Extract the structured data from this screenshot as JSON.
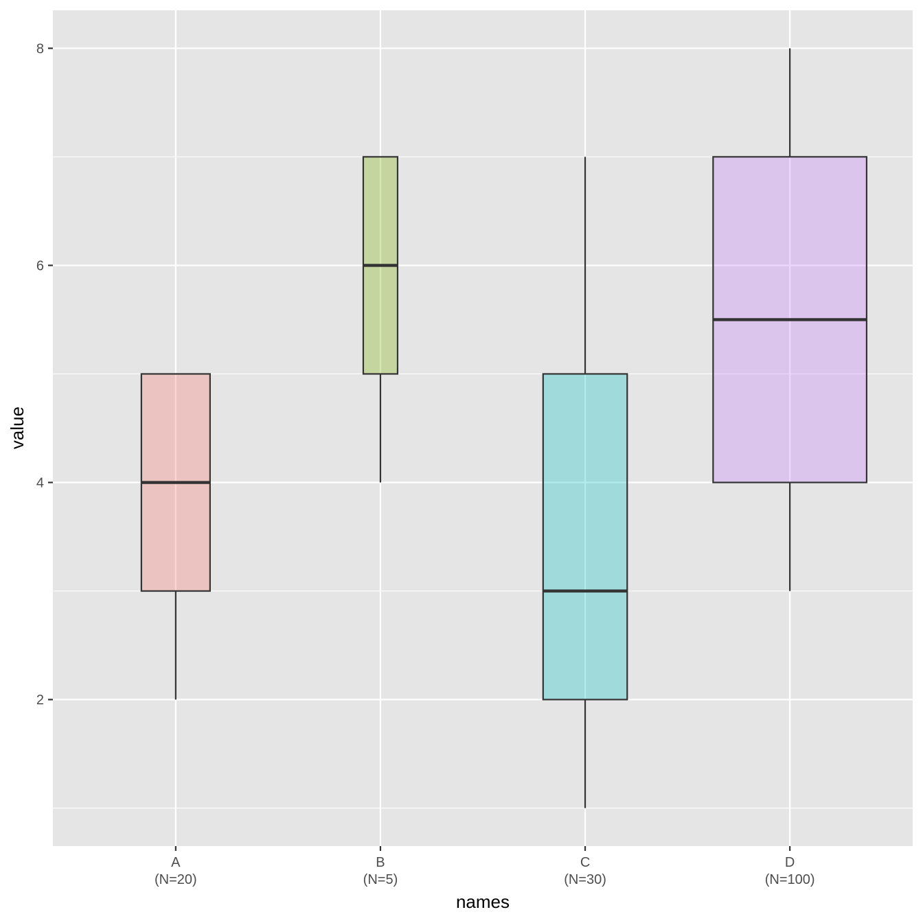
{
  "chart_data": {
    "type": "boxplot",
    "title": "",
    "xlabel": "names",
    "ylabel": "value",
    "ylim": [
      0.65,
      8.35
    ],
    "yticks": [
      2,
      4,
      6,
      8
    ],
    "y_minor_gridlines": [
      1,
      3,
      5,
      7
    ],
    "grid": true,
    "legend": "none",
    "background_color": "#e5e5e5",
    "categories": [
      "A",
      "B",
      "C",
      "D"
    ],
    "category_labels": [
      [
        "A",
        "(N=20)"
      ],
      [
        "B",
        "(N=5)"
      ],
      [
        "C",
        "(N=30)"
      ],
      [
        "D",
        "(N=100)"
      ]
    ],
    "box_width_proportional_to_sqrt_n": true,
    "series": [
      {
        "category": "A",
        "n": 20,
        "whisker_low": 2,
        "q1": 3,
        "median": 4,
        "q3": 5,
        "whisker_high": 5,
        "fill": "#F8766D"
      },
      {
        "category": "B",
        "n": 5,
        "whisker_low": 4,
        "q1": 5,
        "median": 6,
        "q3": 7,
        "whisker_high": 7,
        "fill": "#7CAE00"
      },
      {
        "category": "C",
        "n": 30,
        "whisker_low": 1,
        "q1": 2,
        "median": 3,
        "q3": 5,
        "whisker_high": 7,
        "fill": "#00BFC4"
      },
      {
        "category": "D",
        "n": 100,
        "whisker_low": 3,
        "q1": 4,
        "median": 5.5,
        "q3": 7,
        "whisker_high": 8,
        "fill": "#C77CFF"
      }
    ],
    "box_fill_opacity": 0.3
  }
}
